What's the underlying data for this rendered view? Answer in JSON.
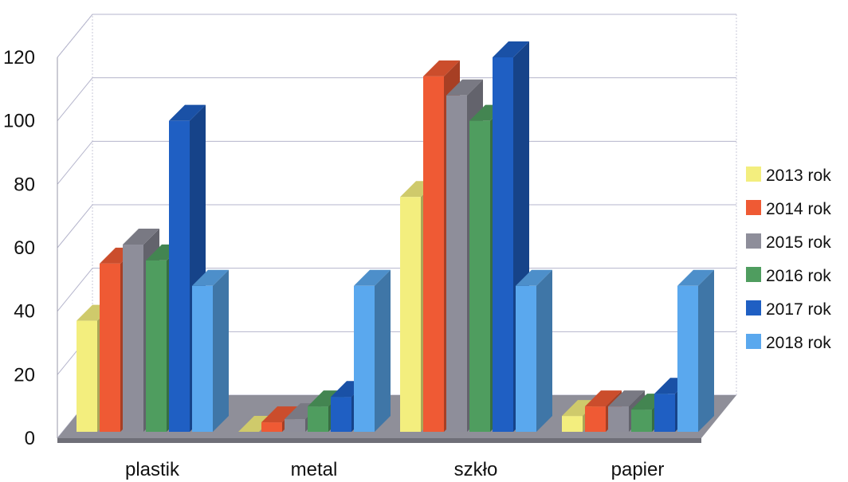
{
  "chart_data": {
    "type": "bar",
    "title": "",
    "xlabel": "",
    "ylabel": "",
    "ylim": [
      0,
      120
    ],
    "yticks": [
      0,
      20,
      40,
      60,
      80,
      100,
      120
    ],
    "categories": [
      "plastik",
      "metal",
      "szkło",
      "papier"
    ],
    "grid": true,
    "legend_position": "right",
    "series": [
      {
        "name": "2013 rok",
        "color": "#f3ee7e",
        "values": [
          37,
          2,
          76,
          7
        ]
      },
      {
        "name": "2014 rok",
        "color": "#ef5a34",
        "values": [
          55,
          5,
          114,
          10
        ]
      },
      {
        "name": "2015 rok",
        "color": "#8e8e9a",
        "values": [
          61,
          6,
          108,
          10
        ]
      },
      {
        "name": "2016 rok",
        "color": "#4f9d5f",
        "values": [
          56,
          10,
          100,
          9
        ]
      },
      {
        "name": "2017 rok",
        "color": "#1f5fc3",
        "values": [
          100,
          13,
          120,
          14
        ]
      },
      {
        "name": "2018 rok",
        "color": "#5aa8ee",
        "values": [
          48,
          48,
          48,
          48
        ]
      }
    ]
  }
}
